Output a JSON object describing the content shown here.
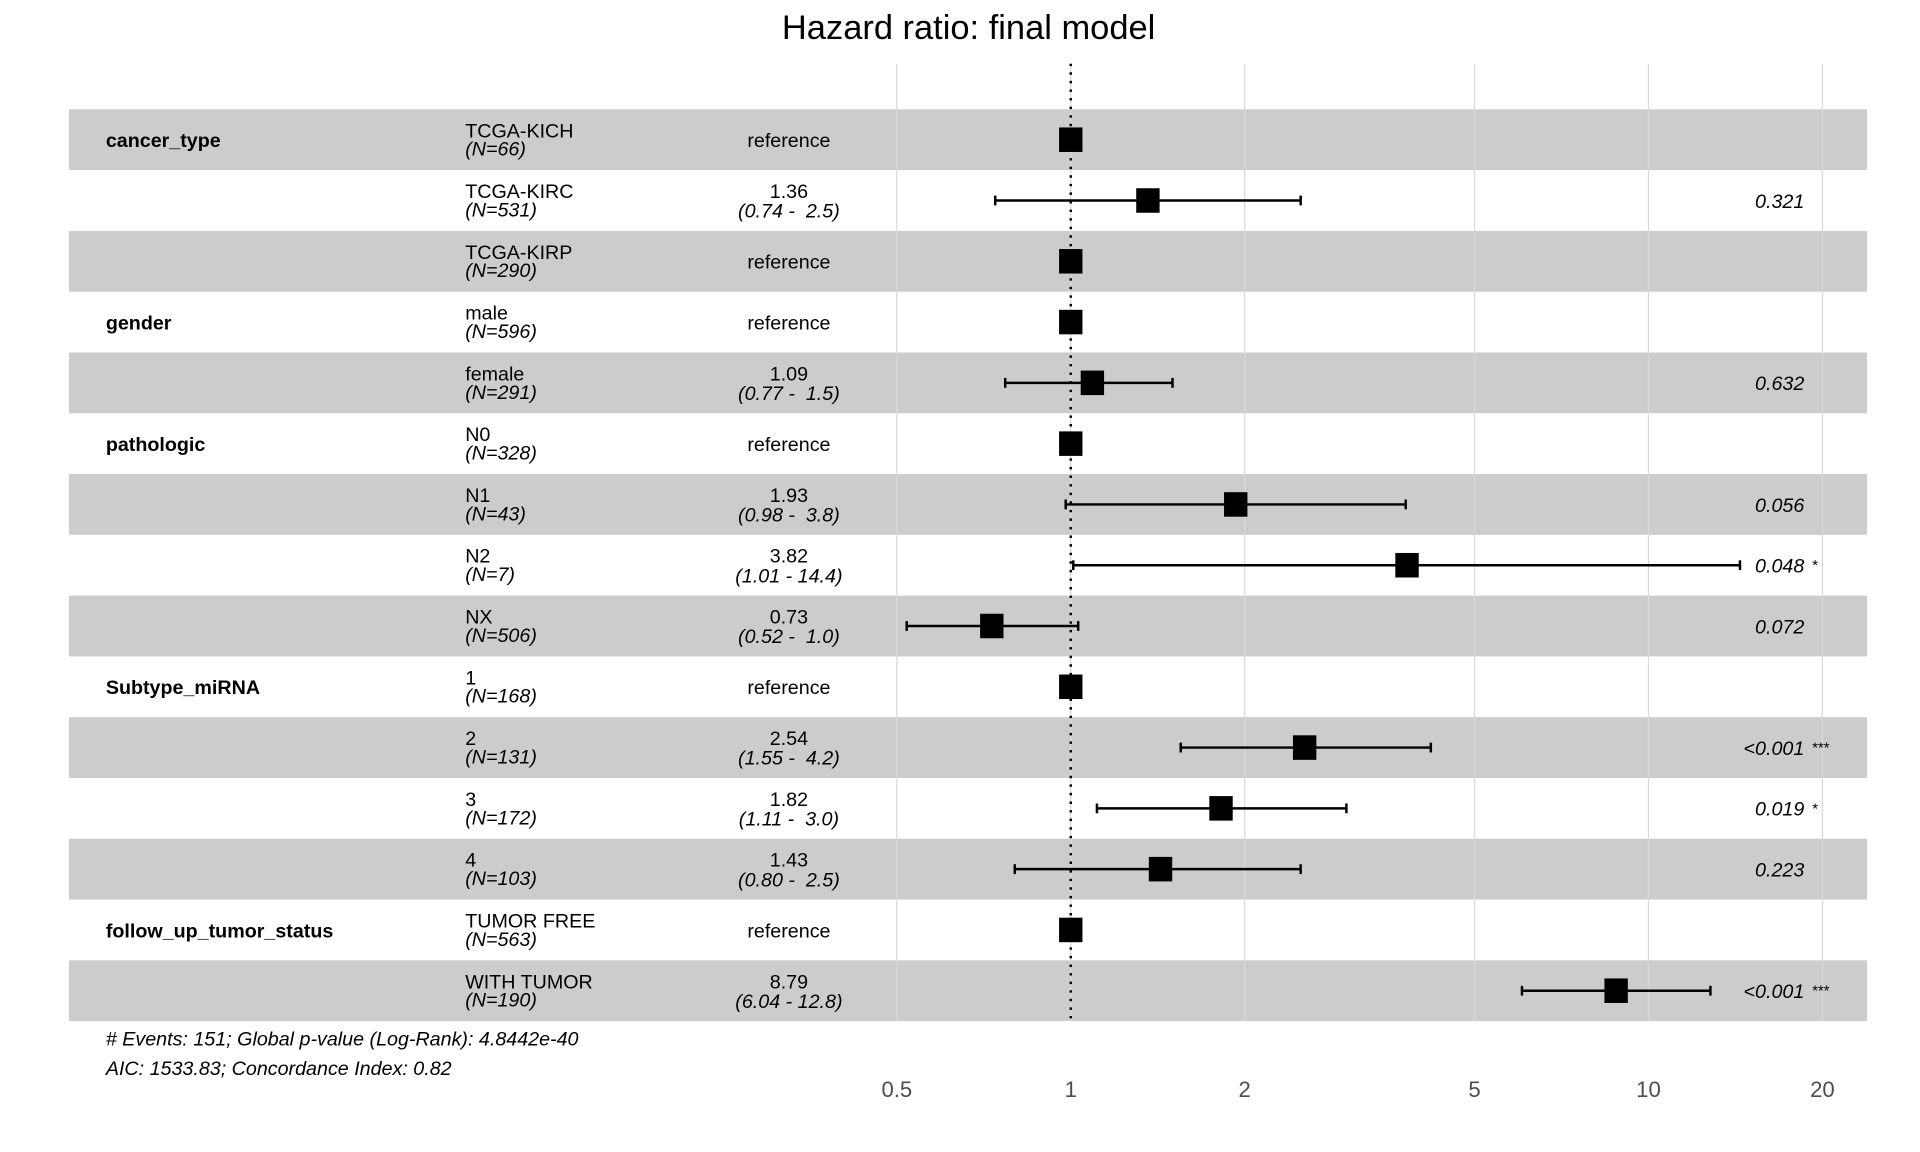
{
  "chart_data": {
    "type": "forest",
    "title": "Hazard ratio: final model",
    "xscale": "log",
    "xlim": [
      0.45,
      23
    ],
    "xticks": [
      "0.5",
      "1",
      "2",
      "5",
      "10",
      "20"
    ],
    "xtick_values": [
      0.5,
      1,
      2,
      5,
      10,
      20
    ],
    "reference_line": 1,
    "shade_color": "#cccccc",
    "rows": [
      {
        "var": "cancer_type",
        "level": "TCGA-KICH",
        "n": "(N=66)",
        "est": "reference",
        "ci": "",
        "hr": 1,
        "lo": null,
        "hi": null,
        "p": "",
        "stars": ""
      },
      {
        "var": "",
        "level": "TCGA-KIRC",
        "n": "(N=531)",
        "est": "1.36",
        "ci": "(0.74 -  2.5)",
        "hr": 1.36,
        "lo": 0.74,
        "hi": 2.5,
        "p": "0.321",
        "stars": ""
      },
      {
        "var": "",
        "level": "TCGA-KIRP",
        "n": "(N=290)",
        "est": "reference",
        "ci": "",
        "hr": 1,
        "lo": null,
        "hi": null,
        "p": "",
        "stars": ""
      },
      {
        "var": "gender",
        "level": "male",
        "n": "(N=596)",
        "est": "reference",
        "ci": "",
        "hr": 1,
        "lo": null,
        "hi": null,
        "p": "",
        "stars": ""
      },
      {
        "var": "",
        "level": "female",
        "n": "(N=291)",
        "est": "1.09",
        "ci": "(0.77 -  1.5)",
        "hr": 1.09,
        "lo": 0.77,
        "hi": 1.5,
        "p": "0.632",
        "stars": ""
      },
      {
        "var": "pathologic",
        "level": "N0",
        "n": "(N=328)",
        "est": "reference",
        "ci": "",
        "hr": 1,
        "lo": null,
        "hi": null,
        "p": "",
        "stars": ""
      },
      {
        "var": "",
        "level": "N1",
        "n": "(N=43)",
        "est": "1.93",
        "ci": "(0.98 -  3.8)",
        "hr": 1.93,
        "lo": 0.98,
        "hi": 3.8,
        "p": "0.056",
        "stars": ""
      },
      {
        "var": "",
        "level": "N2",
        "n": "(N=7)",
        "est": "3.82",
        "ci": "(1.01 - 14.4)",
        "hr": 3.82,
        "lo": 1.01,
        "hi": 14.4,
        "p": "0.048",
        "stars": "*"
      },
      {
        "var": "",
        "level": "NX",
        "n": "(N=506)",
        "est": "0.73",
        "ci": "(0.52 -  1.0)",
        "hr": 0.73,
        "lo": 0.52,
        "hi": 1.03,
        "p": "0.072",
        "stars": ""
      },
      {
        "var": "Subtype_miRNA",
        "level": "1",
        "n": "(N=168)",
        "est": "reference",
        "ci": "",
        "hr": 1,
        "lo": null,
        "hi": null,
        "p": "",
        "stars": ""
      },
      {
        "var": "",
        "level": "2",
        "n": "(N=131)",
        "est": "2.54",
        "ci": "(1.55 -  4.2)",
        "hr": 2.54,
        "lo": 1.55,
        "hi": 4.2,
        "p": "<0.001",
        "stars": "***"
      },
      {
        "var": "",
        "level": "3",
        "n": "(N=172)",
        "est": "1.82",
        "ci": "(1.11 -  3.0)",
        "hr": 1.82,
        "lo": 1.11,
        "hi": 3.0,
        "p": "0.019",
        "stars": "*"
      },
      {
        "var": "",
        "level": "4",
        "n": "(N=103)",
        "est": "1.43",
        "ci": "(0.80 -  2.5)",
        "hr": 1.43,
        "lo": 0.8,
        "hi": 2.5,
        "p": "0.223",
        "stars": ""
      },
      {
        "var": "follow_up_tumor_status",
        "level": "TUMOR FREE",
        "n": "(N=563)",
        "est": "reference",
        "ci": "",
        "hr": 1,
        "lo": null,
        "hi": null,
        "p": "",
        "stars": ""
      },
      {
        "var": "",
        "level": "WITH TUMOR",
        "n": "(N=190)",
        "est": "8.79",
        "ci": "(6.04 - 12.8)",
        "hr": 8.79,
        "lo": 6.04,
        "hi": 12.8,
        "p": "<0.001",
        "stars": "***"
      }
    ],
    "footnotes": [
      "# Events: 151; Global p-value (Log-Rank): 4.8442e-40",
      "AIC: 1533.83; Concordance Index: 0.82"
    ]
  }
}
